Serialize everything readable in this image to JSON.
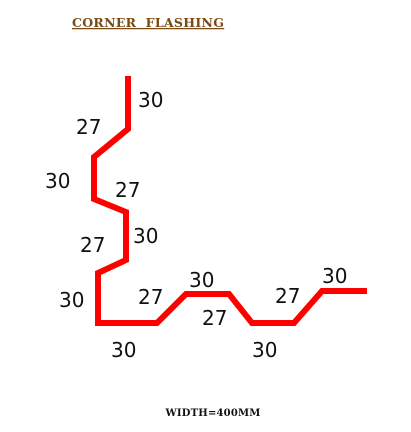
{
  "title": "CORNER  FLASHING",
  "footer": "WIDTH=400MM",
  "colors": {
    "title": "#7a4a14",
    "profile": "#ff0000",
    "text": "#111111"
  },
  "dimensions": [
    "30",
    "27",
    "30",
    "27",
    "30",
    "27",
    "30",
    "30",
    "27",
    "30",
    "27",
    "30",
    "27",
    "30"
  ]
}
